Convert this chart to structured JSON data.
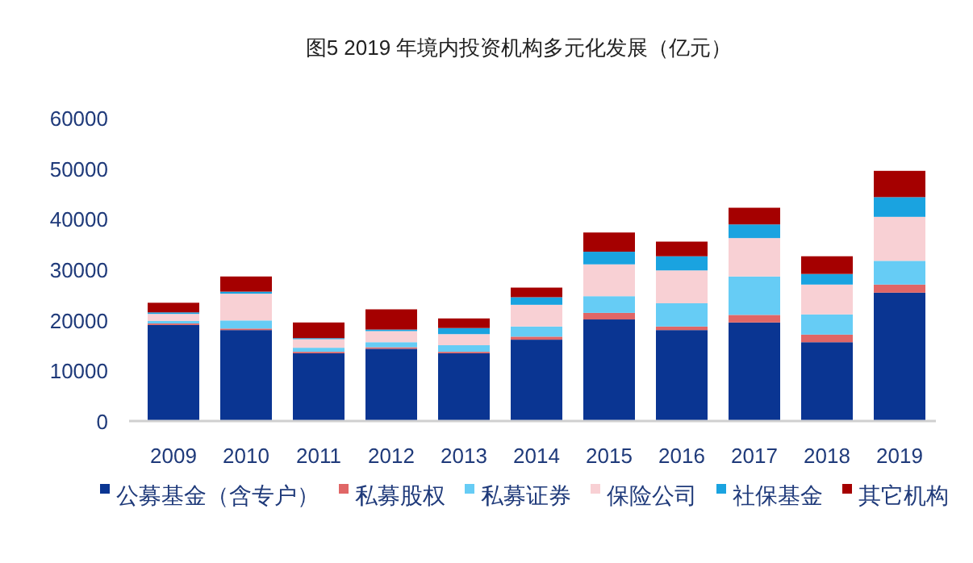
{
  "chart_data": {
    "type": "bar",
    "title": "图5   2019 年境内投资机构多元化发展（亿元）",
    "categories": [
      "2009",
      "2010",
      "2011",
      "2012",
      "2013",
      "2014",
      "2015",
      "2016",
      "2017",
      "2018",
      "2019"
    ],
    "stacked": true,
    "ylim": [
      0,
      60000
    ],
    "yticks": [
      0,
      10000,
      20000,
      30000,
      40000,
      50000,
      60000
    ],
    "legend": "bottom",
    "series": [
      {
        "name": "公募基金（含专户）",
        "color": "#0a3592",
        "values": [
          19000,
          18000,
          13400,
          14300,
          13400,
          16100,
          20100,
          18000,
          19500,
          15600,
          25400
        ]
      },
      {
        "name": "私募股权",
        "color": "#e06666",
        "values": [
          300,
          300,
          300,
          300,
          300,
          600,
          1300,
          700,
          1500,
          1500,
          1600
        ]
      },
      {
        "name": "私募证券",
        "color": "#66ccf5",
        "values": [
          500,
          1600,
          800,
          1000,
          1300,
          2000,
          3300,
          4600,
          7600,
          4000,
          4700
        ]
      },
      {
        "name": "保险公司",
        "color": "#f8d0d4",
        "values": [
          1400,
          5300,
          1700,
          2200,
          2200,
          4300,
          6300,
          6500,
          7600,
          5900,
          8700
        ]
      },
      {
        "name": "社保基金",
        "color": "#1aa3e0",
        "values": [
          300,
          400,
          200,
          300,
          1200,
          1500,
          2500,
          2800,
          2700,
          2100,
          3900
        ]
      },
      {
        "name": "其它机构",
        "color": "#a50000",
        "values": [
          1900,
          3000,
          3100,
          4000,
          1900,
          1900,
          3800,
          2900,
          3300,
          3500,
          5200
        ]
      }
    ]
  }
}
